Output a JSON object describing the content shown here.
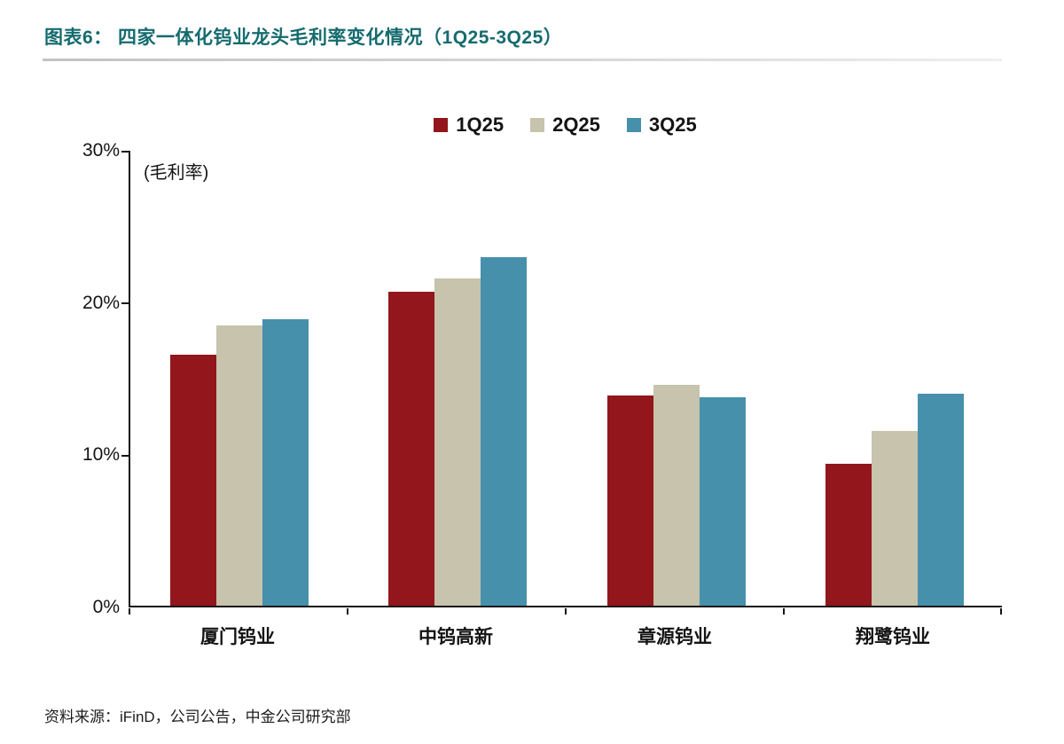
{
  "header": {
    "title": "图表6： 四家一体化钨业龙头毛利率变化情况（1Q25-3Q25）"
  },
  "source": {
    "text": "资料来源：iFinD，公司公告，中金公司研究部"
  },
  "colors": {
    "title_teal": "#156b6e",
    "series_1q25": "#92161b",
    "series_2q25": "#c7c3ac",
    "series_3q25": "#4690ac",
    "axis": "#141414"
  },
  "chart_data": {
    "type": "bar",
    "title": "四家一体化钨业龙头毛利率变化情况（1Q25-3Q25）",
    "unit_label": "(毛利率)",
    "categories": [
      "厦门钨业",
      "中钨高新",
      "章源钨业",
      "翔鹭钨业"
    ],
    "series": [
      {
        "name": "1Q25",
        "color": "#92161b",
        "values": [
          16.5,
          20.6,
          13.8,
          9.3
        ]
      },
      {
        "name": "2Q25",
        "color": "#c7c3ac",
        "values": [
          18.4,
          21.5,
          14.5,
          11.5
        ]
      },
      {
        "name": "3Q25",
        "color": "#4690ac",
        "values": [
          18.8,
          22.9,
          13.7,
          13.9
        ]
      }
    ],
    "xlabel": "",
    "ylabel": "毛利率",
    "ylim": [
      0,
      30
    ],
    "yticks": [
      {
        "label": "30%",
        "value": 30
      },
      {
        "label": "20%",
        "value": 20
      },
      {
        "label": "10%",
        "value": 10
      },
      {
        "label": "0%",
        "value": 0
      }
    ],
    "grid": false,
    "legend_position": "top-center"
  }
}
